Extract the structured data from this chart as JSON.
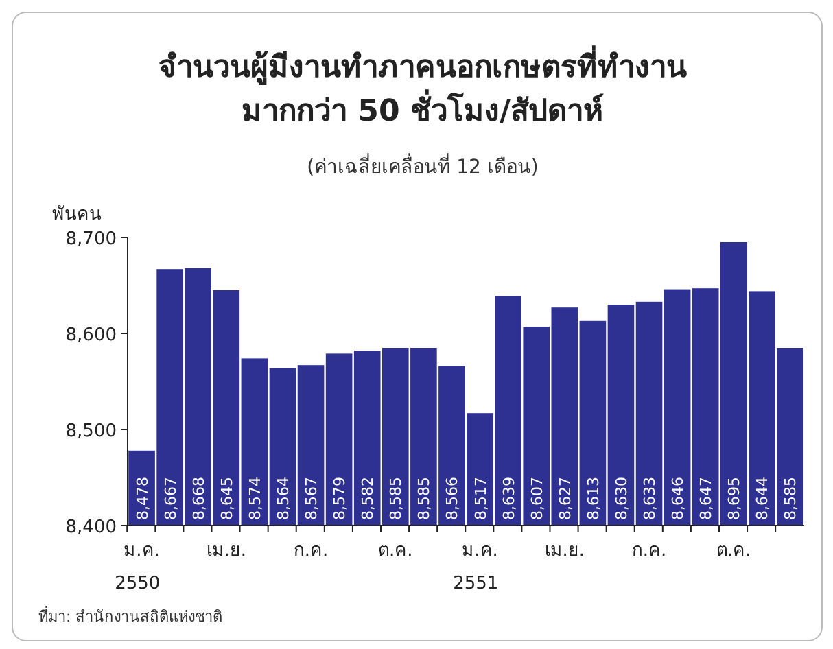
{
  "chart_data": {
    "type": "bar",
    "title": "จำนวนผู้มีงานทำภาคนอกเกษตรที่ทำงาน\nมากกว่า 50 ชั่วโมง/สัปดาห์",
    "subtitle": "(ค่าเฉลี่ยเคลื่อนที่ 12 เดือน)",
    "ylabel": "พันคน",
    "categories": [
      "ม.ค.\n2550",
      null,
      null,
      "เม.ย.",
      null,
      null,
      "ก.ค.",
      null,
      null,
      "ต.ค.",
      null,
      null,
      "ม.ค.\n2551",
      null,
      null,
      "เม.ย.",
      null,
      null,
      "ก.ค.",
      null,
      null,
      "ต.ค.",
      null,
      null
    ],
    "values": [
      8478,
      8667,
      8668,
      8645,
      8574,
      8564,
      8567,
      8579,
      8582,
      8585,
      8585,
      8566,
      8517,
      8639,
      8607,
      8627,
      8613,
      8630,
      8633,
      8646,
      8647,
      8695,
      8644,
      8585
    ],
    "color": "#2e3192",
    "value_labels": [
      "8,478",
      "8,667",
      "8,668",
      "8,645",
      "8,574",
      "8,564",
      "8,567",
      "8,579",
      "8,582",
      "8,585",
      "8,585",
      "8,566",
      "8,517",
      "8,639",
      "8,607",
      "8,627",
      "8,613",
      "8,630",
      "8,633",
      "8,646",
      "8,647",
      "8,695",
      "8,644",
      "8,585"
    ],
    "ylim": [
      8400,
      8700
    ],
    "yticks": [
      {
        "value": 8400,
        "label": "8,400"
      },
      {
        "value": 8500,
        "label": "8,500"
      },
      {
        "value": 8600,
        "label": "8,600"
      },
      {
        "value": 8700,
        "label": "8,700"
      }
    ],
    "annotations": [
      "ที่มา: สำนักงานสถิติแห่งชาติ"
    ]
  }
}
